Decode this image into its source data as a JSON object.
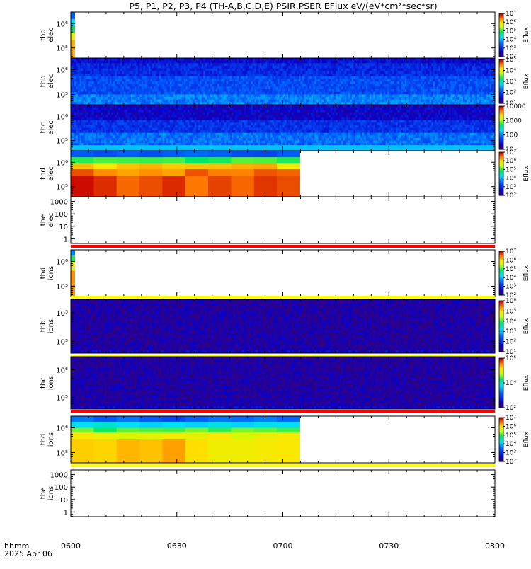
{
  "chart_data": {
    "type": "heatmap",
    "title": "P5, P1, P2, P3, P4 (TH-A,B,C,D,E) PSIR,PSER EFlux eV/(eV*cm²*sec*sr)",
    "time_axis": {
      "label_line1": "hhmm",
      "label_line2": "2025 Apr 06",
      "range_hours": [
        6.0,
        8.0
      ],
      "ticks": [
        {
          "t": 6.0,
          "label": "0600"
        },
        {
          "t": 6.5,
          "label": "0630"
        },
        {
          "t": 7.0,
          "label": "0700"
        },
        {
          "t": 7.5,
          "label": "0730"
        },
        {
          "t": 8.0,
          "label": "0800"
        }
      ]
    },
    "panels": [
      {
        "probe": "thd",
        "species": "elec",
        "ylabel_line1": "thd",
        "ylabel_line2": "elec",
        "ytick_labels": [
          "10⁵",
          "10⁶"
        ],
        "data_end": 6.02,
        "fill": "coverage",
        "colorbar": {
          "labels": [
            "10⁷",
            "10⁶",
            "10⁵",
            "10⁴",
            "10³",
            "10²"
          ],
          "title": "Eflux"
        }
      },
      {
        "probe": "thb",
        "species": "elec",
        "ylabel_line1": "thb",
        "ylabel_line2": "elec",
        "ytick_labels": [
          "10⁵",
          "10⁶"
        ],
        "data_end": 8.0,
        "fill": "noise-blue",
        "top_bar": "",
        "colorbar": {
          "labels": [
            "10⁵",
            "10⁴",
            "10³",
            "10²",
            "10¹"
          ],
          "title": "Eflux"
        }
      },
      {
        "probe": "thc",
        "species": "elec",
        "ylabel_line1": "thc",
        "ylabel_line2": "elec",
        "ytick_labels": [
          "10⁵",
          "10⁶"
        ],
        "data_end": 8.0,
        "fill": "noise-blue-cyan",
        "colorbar": {
          "labels": [
            "10000",
            "1000",
            "100",
            "10"
          ],
          "title": ""
        }
      },
      {
        "probe": "thd",
        "species": "elec",
        "ylabel_line1": "thd",
        "ylabel_line2": "elec",
        "ytick_labels": [
          "10⁵",
          "10⁶"
        ],
        "data_end": 7.08,
        "fill": "high-flux",
        "colorbar": {
          "labels": [
            "10⁷",
            "10⁶",
            "10⁵",
            "10⁴",
            "10³",
            "10²"
          ],
          "title": "Eflux"
        }
      },
      {
        "probe": "the",
        "species": "elec",
        "ylabel_line1": "the",
        "ylabel_line2": "elec",
        "ytick_labels": [
          "1",
          "10",
          "100",
          "1000"
        ],
        "data_end": 6.0,
        "fill": "empty",
        "bottom_bar": "#ff0000",
        "colorbar": null
      },
      {
        "probe": "thd",
        "species": "ions",
        "ylabel_line1": "thd",
        "ylabel_line2": "ions",
        "ytick_labels": [
          "10⁵",
          "10⁶"
        ],
        "data_end": 6.02,
        "fill": "coverage-ions",
        "colorbar": {
          "labels": [
            "10⁷",
            "10⁶",
            "10⁵",
            "10⁴",
            "10³",
            "10²"
          ],
          "title": "Eflux"
        }
      },
      {
        "probe": "thb",
        "species": "ions",
        "ylabel_line1": "thb",
        "ylabel_line2": "ions",
        "ytick_labels": [
          "10³",
          "10⁵"
        ],
        "data_end": 8.0,
        "fill": "noise-purple",
        "top_bar": "#ffff00",
        "bottom_bar": "#ffff00",
        "colorbar": {
          "labels": [
            "10⁶",
            "10⁵",
            "10⁴",
            "10³",
            "10²",
            "10¹"
          ],
          "title": "Eflux"
        }
      },
      {
        "probe": "thc",
        "species": "ions",
        "ylabel_line1": "thc",
        "ylabel_line2": "ions",
        "ytick_labels": [
          "10⁵",
          "10⁶"
        ],
        "data_end": 8.0,
        "fill": "noise-purple",
        "bottom_bar": "#ff0000",
        "colorbar": {
          "labels": [
            "10⁶",
            "10⁴",
            "10²"
          ],
          "title": "Eflux"
        }
      },
      {
        "probe": "thd",
        "species": "ions",
        "ylabel_line1": "thd",
        "ylabel_line2": "ions",
        "ytick_labels": [
          "10⁵",
          "10⁶"
        ],
        "data_end": 7.08,
        "fill": "ion-flux",
        "bottom_bar": "#ffff00",
        "colorbar": {
          "labels": [
            "10⁷",
            "10⁶",
            "10⁵",
            "10⁴",
            "10³",
            "10²"
          ],
          "title": "Eflux"
        }
      },
      {
        "probe": "the",
        "species": "ions",
        "ylabel_line1": "the",
        "ylabel_line2": "ions",
        "ytick_labels": [
          "1",
          "10",
          "100",
          "1000"
        ],
        "data_end": 6.0,
        "fill": "empty",
        "colorbar": null
      }
    ]
  }
}
